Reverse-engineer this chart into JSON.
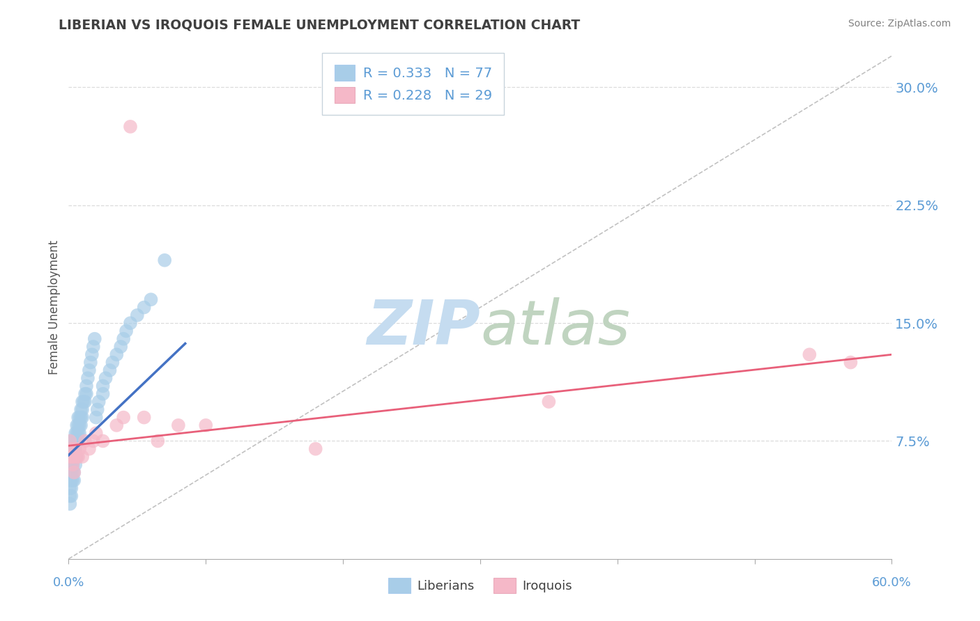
{
  "title": "LIBERIAN VS IROQUOIS FEMALE UNEMPLOYMENT CORRELATION CHART",
  "source": "Source: ZipAtlas.com",
  "ylabel": "Female Unemployment",
  "xlim": [
    0.0,
    0.6
  ],
  "ylim": [
    0.0,
    0.32
  ],
  "ytick_positions": [
    0.075,
    0.15,
    0.225,
    0.3
  ],
  "ytick_labels": [
    "7.5%",
    "15.0%",
    "22.5%",
    "30.0%"
  ],
  "xtick_label_left": "0.0%",
  "xtick_label_right": "60.0%",
  "legend_line1": "R = 0.333   N = 77",
  "legend_line2": "R = 0.228   N = 29",
  "color_liberian": "#A8CDE8",
  "color_iroquois": "#F5B8C8",
  "color_trend_liberian": "#4472C4",
  "color_trend_iroquois": "#E8607A",
  "color_diagonal": "#BBBBBB",
  "color_tick_labels": "#5B9BD5",
  "color_title": "#404040",
  "color_source": "#808080",
  "color_grid": "#DCDCDC",
  "trend_lib_x0": 0.0,
  "trend_lib_y0": 0.066,
  "trend_lib_x1": 0.085,
  "trend_lib_y1": 0.137,
  "trend_iroq_x0": 0.0,
  "trend_iroq_y0": 0.072,
  "trend_iroq_x1": 0.6,
  "trend_iroq_y1": 0.13,
  "lib_x": [
    0.001,
    0.001,
    0.001,
    0.001,
    0.001,
    0.001,
    0.001,
    0.001,
    0.001,
    0.002,
    0.002,
    0.002,
    0.002,
    0.002,
    0.002,
    0.002,
    0.003,
    0.003,
    0.003,
    0.003,
    0.003,
    0.003,
    0.004,
    0.004,
    0.004,
    0.004,
    0.004,
    0.005,
    0.005,
    0.005,
    0.005,
    0.005,
    0.006,
    0.006,
    0.006,
    0.006,
    0.007,
    0.007,
    0.007,
    0.007,
    0.008,
    0.008,
    0.008,
    0.009,
    0.009,
    0.009,
    0.01,
    0.01,
    0.01,
    0.011,
    0.012,
    0.012,
    0.013,
    0.013,
    0.014,
    0.015,
    0.016,
    0.017,
    0.018,
    0.019,
    0.02,
    0.021,
    0.022,
    0.025,
    0.025,
    0.027,
    0.03,
    0.032,
    0.035,
    0.038,
    0.04,
    0.042,
    0.045,
    0.05,
    0.055,
    0.06,
    0.07
  ],
  "lib_y": [
    0.07,
    0.065,
    0.06,
    0.055,
    0.05,
    0.045,
    0.04,
    0.035,
    0.075,
    0.07,
    0.065,
    0.06,
    0.055,
    0.05,
    0.045,
    0.04,
    0.075,
    0.07,
    0.065,
    0.06,
    0.055,
    0.05,
    0.075,
    0.07,
    0.065,
    0.055,
    0.05,
    0.08,
    0.075,
    0.07,
    0.065,
    0.06,
    0.085,
    0.08,
    0.075,
    0.065,
    0.09,
    0.085,
    0.08,
    0.075,
    0.09,
    0.085,
    0.08,
    0.095,
    0.09,
    0.085,
    0.1,
    0.095,
    0.09,
    0.1,
    0.105,
    0.1,
    0.11,
    0.105,
    0.115,
    0.12,
    0.125,
    0.13,
    0.135,
    0.14,
    0.09,
    0.095,
    0.1,
    0.105,
    0.11,
    0.115,
    0.12,
    0.125,
    0.13,
    0.135,
    0.14,
    0.145,
    0.15,
    0.155,
    0.16,
    0.165,
    0.19
  ],
  "iroq_x": [
    0.001,
    0.001,
    0.002,
    0.002,
    0.003,
    0.003,
    0.004,
    0.004,
    0.005,
    0.006,
    0.007,
    0.008,
    0.01,
    0.012,
    0.015,
    0.018,
    0.02,
    0.025,
    0.035,
    0.04,
    0.045,
    0.055,
    0.065,
    0.08,
    0.1,
    0.18,
    0.35,
    0.54,
    0.57
  ],
  "iroq_y": [
    0.065,
    0.075,
    0.065,
    0.07,
    0.06,
    0.065,
    0.055,
    0.065,
    0.07,
    0.065,
    0.065,
    0.07,
    0.065,
    0.075,
    0.07,
    0.075,
    0.08,
    0.075,
    0.085,
    0.09,
    0.275,
    0.09,
    0.075,
    0.085,
    0.085,
    0.07,
    0.1,
    0.13,
    0.125
  ]
}
